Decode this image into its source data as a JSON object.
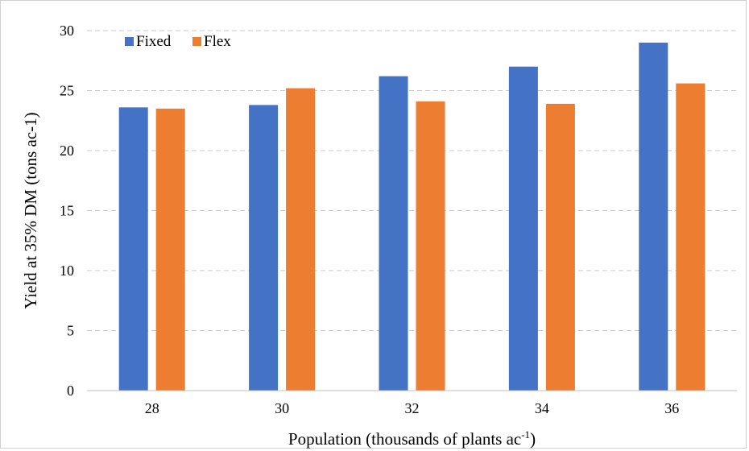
{
  "chart_data": {
    "type": "bar",
    "title": "",
    "xlabel": "Population (thousands of plants ac",
    "xlabel_sup": "-1",
    "xlabel_close": ")",
    "ylabel": "Yield at 35% DM (tons ac-1)",
    "categories": [
      "28",
      "30",
      "32",
      "34",
      "36"
    ],
    "series": [
      {
        "name": "Fixed",
        "color": "#4472C4",
        "values": [
          23.6,
          23.8,
          26.2,
          27.0,
          29.0
        ]
      },
      {
        "name": "Flex",
        "color": "#ED7D31",
        "values": [
          23.5,
          25.2,
          24.1,
          23.9,
          25.6
        ]
      }
    ],
    "ylim": [
      0,
      30
    ],
    "yticks": [
      0,
      5,
      10,
      15,
      20,
      25,
      30
    ],
    "grid": true,
    "legend": "top-left"
  }
}
